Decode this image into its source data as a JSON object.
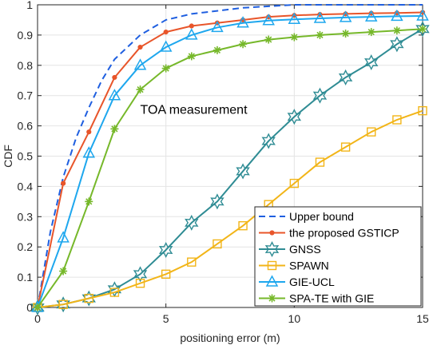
{
  "chart_data": {
    "type": "line",
    "xlabel": "positioning error (m)",
    "ylabel": "CDF",
    "xlim": [
      0,
      15
    ],
    "ylim": [
      0,
      1
    ],
    "xticks": [
      0,
      5,
      10,
      15
    ],
    "yticks": [
      0,
      0.1,
      0.2,
      0.3,
      0.4,
      0.5,
      0.6,
      0.7,
      0.8,
      0.9,
      1
    ],
    "ytick_labels": [
      "0",
      "0.1",
      "0.2",
      "0.3",
      "0.4",
      "0.5",
      "0.6",
      "0.7",
      "0.8",
      "0.9",
      "1"
    ],
    "grid": true,
    "legend_position": "bottom-right",
    "annotation": "TOA measurement",
    "series": [
      {
        "name": "Upper bound",
        "color": "#1f5fe0",
        "line_style": "dashed",
        "marker": "none",
        "x": [
          0,
          0.5,
          1,
          1.5,
          2,
          2.5,
          3,
          3.5,
          4,
          5,
          6,
          7,
          8,
          9,
          10,
          11,
          12,
          13,
          14,
          15
        ],
        "y": [
          0,
          0.25,
          0.43,
          0.56,
          0.66,
          0.75,
          0.82,
          0.86,
          0.9,
          0.95,
          0.97,
          0.98,
          0.99,
          0.995,
          1,
          1,
          1,
          1,
          1,
          1
        ]
      },
      {
        "name": "the proposed GSTICP",
        "color": "#e8552a",
        "line_style": "solid",
        "marker": "dot",
        "x": [
          0,
          1,
          2,
          3,
          4,
          5,
          6,
          7,
          8,
          9,
          10,
          11,
          12,
          13,
          14,
          15
        ],
        "y": [
          0,
          0.41,
          0.58,
          0.76,
          0.86,
          0.91,
          0.93,
          0.94,
          0.95,
          0.96,
          0.965,
          0.968,
          0.97,
          0.972,
          0.973,
          0.975
        ]
      },
      {
        "name": "GNSS",
        "color": "#2f8c94",
        "line_style": "solid",
        "marker": "hexagram",
        "x": [
          0,
          1,
          2,
          3,
          4,
          5,
          6,
          7,
          8,
          9,
          10,
          11,
          12,
          13,
          14,
          15
        ],
        "y": [
          0,
          0.01,
          0.03,
          0.06,
          0.11,
          0.19,
          0.28,
          0.35,
          0.45,
          0.55,
          0.63,
          0.7,
          0.76,
          0.81,
          0.87,
          0.92
        ]
      },
      {
        "name": "SPAWN",
        "color": "#f2b518",
        "line_style": "solid",
        "marker": "square",
        "x": [
          0,
          1,
          2,
          3,
          4,
          5,
          6,
          7,
          8,
          9,
          10,
          11,
          12,
          13,
          14,
          15
        ],
        "y": [
          0,
          0.01,
          0.03,
          0.05,
          0.08,
          0.11,
          0.15,
          0.21,
          0.27,
          0.34,
          0.41,
          0.48,
          0.53,
          0.58,
          0.62,
          0.65
        ]
      },
      {
        "name": "GIE-UCL",
        "color": "#1ea7ee",
        "line_style": "solid",
        "marker": "triangle",
        "x": [
          0,
          1,
          2,
          3,
          4,
          5,
          6,
          7,
          8,
          9,
          10,
          11,
          12,
          13,
          14,
          15
        ],
        "y": [
          0,
          0.23,
          0.51,
          0.7,
          0.8,
          0.86,
          0.9,
          0.925,
          0.94,
          0.948,
          0.952,
          0.955,
          0.958,
          0.96,
          0.962,
          0.963
        ]
      },
      {
        "name": "SPA-TE with GIE",
        "color": "#76b82a",
        "line_style": "solid",
        "marker": "asterisk",
        "x": [
          0,
          1,
          2,
          3,
          4,
          5,
          6,
          7,
          8,
          9,
          10,
          11,
          12,
          13,
          14,
          15
        ],
        "y": [
          0,
          0.12,
          0.35,
          0.59,
          0.72,
          0.79,
          0.83,
          0.85,
          0.87,
          0.885,
          0.893,
          0.9,
          0.905,
          0.91,
          0.915,
          0.92
        ]
      }
    ]
  }
}
